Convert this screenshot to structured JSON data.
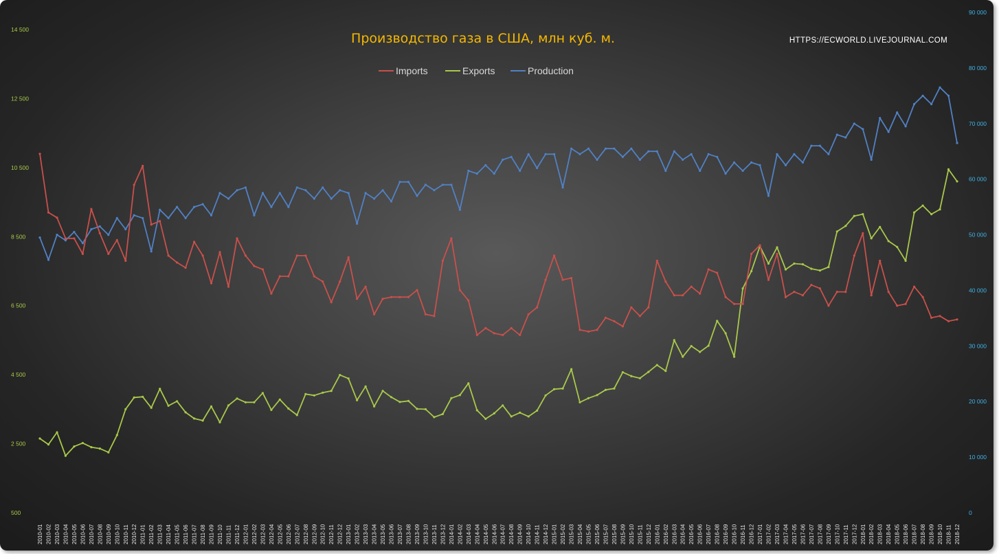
{
  "chart_data": {
    "type": "line",
    "title": "Производство газа в США, млн куб. м.",
    "source_label": "HTTPS://ECWORLD.LIVEJOURNAL.COM",
    "legend_position": "top",
    "grid": false,
    "colors": {
      "title": "#f5b800",
      "left_axis_labels": "#a9c94a",
      "right_axis_labels": "#3fb3e8",
      "x_axis_labels": "#e6e6e6"
    },
    "y_left": {
      "ylim": [
        500,
        14500
      ],
      "ticks": [
        500,
        2500,
        4500,
        6500,
        8500,
        10500,
        12500,
        14500
      ],
      "tick_labels": [
        "500",
        "2 500",
        "4 500",
        "6 500",
        "8 500",
        "10 500",
        "12 500",
        "14 500"
      ]
    },
    "y_right": {
      "ylim": [
        0,
        90000
      ],
      "ticks": [
        0,
        10000,
        20000,
        30000,
        40000,
        50000,
        60000,
        70000,
        80000,
        90000
      ],
      "tick_labels": [
        "0",
        "10 000",
        "20 000",
        "30 000",
        "40 000",
        "50 000",
        "60 000",
        "70 000",
        "80 000",
        "90 000"
      ]
    },
    "x": [
      "2010-01",
      "2010-02",
      "2010-03",
      "2010-04",
      "2010-05",
      "2010-06",
      "2010-07",
      "2010-08",
      "2010-09",
      "2010-10",
      "2010-11",
      "2010-12",
      "2011-01",
      "2011-02",
      "2011-03",
      "2011-04",
      "2011-05",
      "2011-06",
      "2011-07",
      "2011-08",
      "2011-09",
      "2011-10",
      "2011-11",
      "2011-12",
      "2012-01",
      "2012-02",
      "2012-03",
      "2012-04",
      "2012-05",
      "2012-06",
      "2012-07",
      "2012-08",
      "2012-09",
      "2012-10",
      "2012-11",
      "2012-12",
      "2013-01",
      "2013-02",
      "2013-03",
      "2013-04",
      "2013-05",
      "2013-06",
      "2013-07",
      "2013-08",
      "2013-09",
      "2013-10",
      "2013-11",
      "2013-12",
      "2014-01",
      "2014-02",
      "2014-03",
      "2014-04",
      "2014-05",
      "2014-06",
      "2014-07",
      "2014-08",
      "2014-09",
      "2014-10",
      "2014-11",
      "2014-12",
      "2015-01",
      "2015-02",
      "2015-03",
      "2015-04",
      "2015-05",
      "2015-06",
      "2015-07",
      "2015-08",
      "2015-09",
      "2015-10",
      "2015-11",
      "2015-12",
      "2016-01",
      "2016-02",
      "2016-03",
      "2016-04",
      "2016-05",
      "2016-06",
      "2016-07",
      "2016-08",
      "2016-09",
      "2016-10",
      "2016-11",
      "2016-12",
      "2017-01",
      "2017-02",
      "2017-03",
      "2017-04",
      "2017-05",
      "2017-06",
      "2017-07",
      "2017-08",
      "2017-09",
      "2017-10",
      "2017-11",
      "2017-12",
      "2018-01",
      "2018-02",
      "2018-03",
      "2018-04",
      "2018-05",
      "2018-06",
      "2018-07",
      "2018-08",
      "2018-09",
      "2018-10",
      "2018-11",
      "2018-12"
    ],
    "series": [
      {
        "name": "Imports",
        "axis": "left",
        "color": "#c9504b",
        "values": [
          10900,
          9200,
          9050,
          8450,
          8450,
          8000,
          9300,
          8600,
          8000,
          8400,
          7800,
          10000,
          10550,
          8850,
          8950,
          7950,
          7750,
          7600,
          8350,
          7950,
          7150,
          8050,
          7050,
          8450,
          7950,
          7650,
          7550,
          6850,
          7350,
          7350,
          7950,
          7950,
          7350,
          7200,
          6600,
          7200,
          7900,
          6700,
          7050,
          6250,
          6700,
          6750,
          6750,
          6750,
          6950,
          6250,
          6200,
          7800,
          8450,
          6950,
          6650,
          5650,
          5850,
          5700,
          5650,
          5850,
          5650,
          6250,
          6450,
          7250,
          7950,
          7250,
          7300,
          5800,
          5750,
          5800,
          6150,
          6050,
          5900,
          6450,
          6200,
          6450,
          7800,
          7200,
          6800,
          6800,
          7050,
          6850,
          7550,
          7450,
          6750,
          6550,
          6550,
          8000,
          8250,
          7250,
          8000,
          6750,
          6900,
          6800,
          7100,
          7000,
          6500,
          6900,
          6900,
          7950,
          8600,
          6800,
          7800,
          6900,
          6500,
          6550,
          7050,
          6750,
          6150,
          6200,
          6050,
          6100
        ]
      },
      {
        "name": "Exports",
        "axis": "left",
        "color": "#a9c94a",
        "values": [
          2650,
          2480,
          2830,
          2150,
          2420,
          2520,
          2400,
          2360,
          2250,
          2750,
          3500,
          3840,
          3860,
          3540,
          4090,
          3600,
          3730,
          3410,
          3230,
          3170,
          3580,
          3120,
          3610,
          3810,
          3700,
          3700,
          3970,
          3480,
          3780,
          3520,
          3330,
          3940,
          3900,
          3980,
          4030,
          4490,
          4390,
          3760,
          4160,
          3580,
          4030,
          3850,
          3710,
          3740,
          3510,
          3500,
          3270,
          3360,
          3820,
          3910,
          4250,
          3470,
          3220,
          3380,
          3610,
          3290,
          3400,
          3290,
          3460,
          3900,
          4080,
          4100,
          4660,
          3700,
          3820,
          3910,
          4060,
          4100,
          4570,
          4460,
          4400,
          4580,
          4780,
          4610,
          5500,
          5020,
          5330,
          5160,
          5340,
          6060,
          5700,
          5020,
          7000,
          7500,
          8220,
          7720,
          8190,
          7550,
          7720,
          7700,
          7570,
          7520,
          7620,
          8650,
          8810,
          9100,
          9150,
          8450,
          8780,
          8370,
          8200,
          7800,
          9200,
          9400,
          9150,
          9290,
          10450,
          10100
        ]
      },
      {
        "name": "Production",
        "axis": "right",
        "color": "#5181c4",
        "values": [
          49500,
          45500,
          50000,
          49000,
          50500,
          48500,
          51000,
          51500,
          50000,
          53000,
          51000,
          53500,
          53000,
          47000,
          54500,
          53000,
          55000,
          53000,
          55000,
          55500,
          53500,
          57500,
          56500,
          58000,
          58500,
          53500,
          57500,
          55000,
          57500,
          55000,
          58500,
          58000,
          56500,
          58500,
          56500,
          58000,
          57500,
          52000,
          57500,
          56500,
          58000,
          56000,
          59500,
          59500,
          57000,
          59000,
          58000,
          59000,
          59000,
          54500,
          61500,
          61000,
          62500,
          61000,
          63500,
          64000,
          61500,
          64500,
          62000,
          64500,
          64500,
          58500,
          65500,
          64500,
          65500,
          63500,
          65500,
          65500,
          64000,
          65500,
          63500,
          65000,
          65000,
          61500,
          65000,
          63500,
          64500,
          61500,
          64500,
          64000,
          61000,
          63000,
          61500,
          63000,
          62500,
          57000,
          64500,
          62500,
          64500,
          63000,
          66000,
          66000,
          64500,
          68000,
          67500,
          70000,
          69000,
          63500,
          71000,
          68500,
          72000,
          69500,
          73500,
          75000,
          73500,
          76500,
          75000,
          66500
        ]
      }
    ]
  }
}
